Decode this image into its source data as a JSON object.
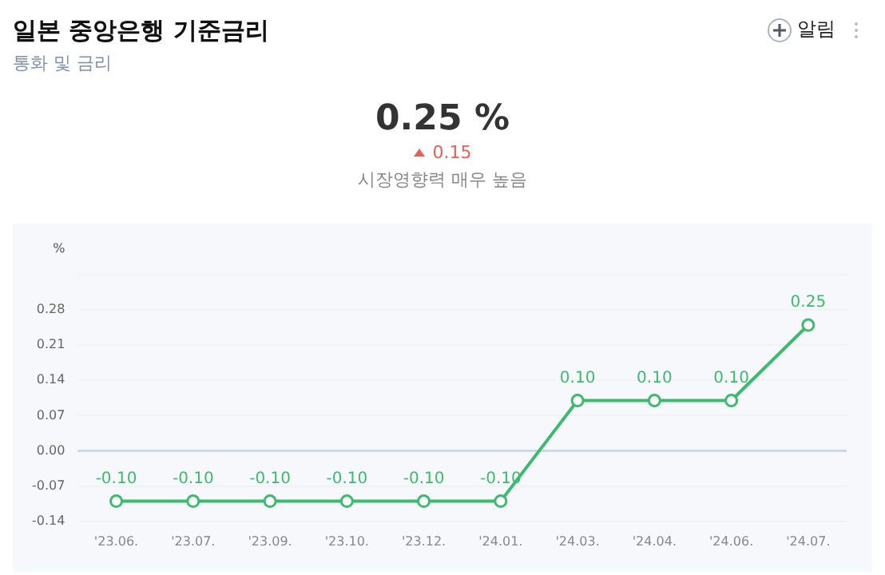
{
  "chart_data": {
    "type": "line",
    "title": "일본 중앙은행 기준금리",
    "subtitle": "통화 및 금리",
    "ylabel": "%",
    "annotations": [
      "0.25 %",
      "0.15",
      "시장영향력 매우 높음",
      "알림"
    ],
    "categories": [
      "'23.06.",
      "'23.07.",
      "'23.09.",
      "'23.10.",
      "'23.12.",
      "'24.01.",
      "'24.03.",
      "'24.04.",
      "'24.06.",
      "'24.07."
    ],
    "series": [
      {
        "color": "#3dba6f",
        "values": [
          -0.1,
          -0.1,
          -0.1,
          -0.1,
          -0.1,
          -0.1,
          0.1,
          0.1,
          0.1,
          0.25
        ],
        "value_labels": [
          "-0.10",
          "-0.10",
          "-0.10",
          "-0.10",
          "-0.10",
          "-0.10",
          "0.10",
          "0.10",
          "0.10",
          "0.25"
        ]
      }
    ],
    "ylim": [
      -0.14,
      0.35
    ],
    "yticks": [
      -0.14,
      -0.07,
      {
        "value": 0,
        "label": "0.00"
      },
      0.07,
      0.14,
      0.21,
      0.28,
      {
        "value": 0.35,
        "label": null
      }
    ],
    "ref_lines": [
      {
        "axis": "y",
        "value": 0,
        "color": "#c9d8f0"
      }
    ],
    "grid": "y",
    "legend": false,
    "marker": "circle",
    "line_style": "solid"
  }
}
